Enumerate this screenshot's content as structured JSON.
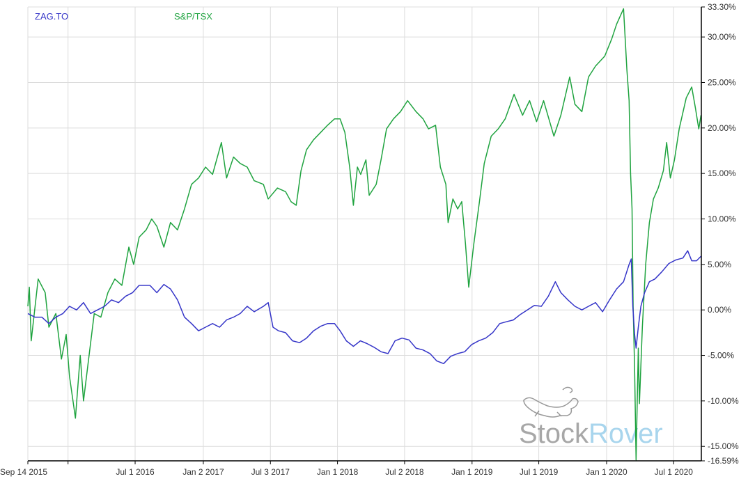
{
  "chart_data": {
    "type": "line",
    "title": "",
    "xlabel": "",
    "ylabel": "",
    "y_unit": "%",
    "ylim": [
      -16.59,
      33.3
    ],
    "xlim": [
      "2015-09-14",
      "2020-09-14"
    ],
    "grid": true,
    "legend_placement": "top-left",
    "y_ticks": [
      "33.30%",
      "30.00%",
      "25.00%",
      "20.00%",
      "15.00%",
      "10.00%",
      "5.00%",
      "0.00%",
      "-5.00%",
      "-10.00%",
      "-15.00%",
      "-16.59%"
    ],
    "y_tick_values": [
      33.3,
      30,
      25,
      20,
      15,
      10,
      5,
      0,
      -5,
      -10,
      -15,
      -16.59
    ],
    "x_ticks": [
      {
        "date": "2015-09-14",
        "label": "Sep 14 2015"
      },
      {
        "date": "2016-01-01",
        "label": ""
      },
      {
        "date": "2016-07-01",
        "label": "Jul 1 2016"
      },
      {
        "date": "2017-01-02",
        "label": "Jan 2 2017"
      },
      {
        "date": "2017-07-03",
        "label": "Jul 3 2017"
      },
      {
        "date": "2018-01-01",
        "label": "Jan 1 2018"
      },
      {
        "date": "2018-07-02",
        "label": "Jul 2 2018"
      },
      {
        "date": "2019-01-01",
        "label": "Jan 1 2019"
      },
      {
        "date": "2019-07-01",
        "label": "Jul 1 2019"
      },
      {
        "date": "2020-01-01",
        "label": "Jan 1 2020"
      },
      {
        "date": "2020-07-01",
        "label": "Jul 1 2020"
      }
    ],
    "series": [
      {
        "name": "ZAG.TO",
        "color": "#3535c8",
        "points": [
          [
            "2015-09-14",
            -0.4
          ],
          [
            "2015-10-03",
            -0.8
          ],
          [
            "2015-10-22",
            -0.8
          ],
          [
            "2015-11-10",
            -1.5
          ],
          [
            "2015-11-29",
            -0.8
          ],
          [
            "2015-12-18",
            -0.4
          ],
          [
            "2016-01-05",
            0.4
          ],
          [
            "2016-01-24",
            0
          ],
          [
            "2016-02-12",
            0.8
          ],
          [
            "2016-03-02",
            -0.4
          ],
          [
            "2016-03-21",
            0
          ],
          [
            "2016-04-09",
            0.4
          ],
          [
            "2016-04-28",
            1.1
          ],
          [
            "2016-05-17",
            0.8
          ],
          [
            "2016-06-05",
            1.5
          ],
          [
            "2016-06-24",
            1.9
          ],
          [
            "2016-07-12",
            2.7
          ],
          [
            "2016-08-10",
            2.7
          ],
          [
            "2016-08-29",
            1.9
          ],
          [
            "2016-09-17",
            2.8
          ],
          [
            "2016-10-05",
            2.3
          ],
          [
            "2016-10-24",
            1.1
          ],
          [
            "2016-11-12",
            -0.8
          ],
          [
            "2016-12-01",
            -1.5
          ],
          [
            "2016-12-20",
            -2.3
          ],
          [
            "2017-01-08",
            -1.9
          ],
          [
            "2017-01-27",
            -1.5
          ],
          [
            "2017-02-15",
            -1.9
          ],
          [
            "2017-03-06",
            -1.1
          ],
          [
            "2017-03-25",
            -0.8
          ],
          [
            "2017-04-12",
            -0.4
          ],
          [
            "2017-05-01",
            0.4
          ],
          [
            "2017-05-20",
            -0.2
          ],
          [
            "2017-06-14",
            0.4
          ],
          [
            "2017-06-27",
            0.8
          ],
          [
            "2017-07-10",
            -1.9
          ],
          [
            "2017-07-25",
            -2.3
          ],
          [
            "2017-08-13",
            -2.5
          ],
          [
            "2017-09-01",
            -3.4
          ],
          [
            "2017-09-20",
            -3.6
          ],
          [
            "2017-10-09",
            -3.1
          ],
          [
            "2017-10-28",
            -2.3
          ],
          [
            "2017-11-16",
            -1.8
          ],
          [
            "2017-12-05",
            -1.5
          ],
          [
            "2017-12-24",
            -1.5
          ],
          [
            "2018-01-08",
            -2.3
          ],
          [
            "2018-01-25",
            -3.4
          ],
          [
            "2018-02-13",
            -4.0
          ],
          [
            "2018-03-04",
            -3.4
          ],
          [
            "2018-03-22",
            -3.7
          ],
          [
            "2018-04-10",
            -4.1
          ],
          [
            "2018-04-29",
            -4.6
          ],
          [
            "2018-05-18",
            -4.8
          ],
          [
            "2018-06-06",
            -3.4
          ],
          [
            "2018-06-25",
            -3.1
          ],
          [
            "2018-07-14",
            -3.3
          ],
          [
            "2018-08-02",
            -4.2
          ],
          [
            "2018-08-21",
            -4.4
          ],
          [
            "2018-09-09",
            -4.8
          ],
          [
            "2018-09-27",
            -5.6
          ],
          [
            "2018-10-16",
            -5.9
          ],
          [
            "2018-11-04",
            -5.1
          ],
          [
            "2018-11-23",
            -4.8
          ],
          [
            "2018-12-12",
            -4.6
          ],
          [
            "2018-12-31",
            -3.8
          ],
          [
            "2019-01-19",
            -3.4
          ],
          [
            "2019-02-07",
            -3.1
          ],
          [
            "2019-02-26",
            -2.5
          ],
          [
            "2019-03-17",
            -1.5
          ],
          [
            "2019-04-04",
            -1.3
          ],
          [
            "2019-04-23",
            -1.1
          ],
          [
            "2019-05-12",
            -0.5
          ],
          [
            "2019-05-31",
            0
          ],
          [
            "2019-06-19",
            0.5
          ],
          [
            "2019-07-08",
            0.4
          ],
          [
            "2019-07-27",
            1.5
          ],
          [
            "2019-08-15",
            3.1
          ],
          [
            "2019-08-30",
            1.9
          ],
          [
            "2019-09-18",
            1.1
          ],
          [
            "2019-10-07",
            0.4
          ],
          [
            "2019-10-26",
            0
          ],
          [
            "2019-11-13",
            0.4
          ],
          [
            "2019-12-02",
            0.8
          ],
          [
            "2019-12-21",
            -0.2
          ],
          [
            "2020-01-09",
            1.1
          ],
          [
            "2020-01-28",
            2.3
          ],
          [
            "2020-02-16",
            3.1
          ],
          [
            "2020-03-02",
            5.0
          ],
          [
            "2020-03-08",
            5.6
          ],
          [
            "2020-03-12",
            0.4
          ],
          [
            "2020-03-17",
            -2.7
          ],
          [
            "2020-03-21",
            -4.2
          ],
          [
            "2020-03-27",
            -1.9
          ],
          [
            "2020-04-03",
            0.4
          ],
          [
            "2020-04-13",
            1.9
          ],
          [
            "2020-04-26",
            3.1
          ],
          [
            "2020-05-11",
            3.4
          ],
          [
            "2020-05-30",
            4.2
          ],
          [
            "2020-06-18",
            5.1
          ],
          [
            "2020-07-07",
            5.5
          ],
          [
            "2020-07-26",
            5.7
          ],
          [
            "2020-08-08",
            6.5
          ],
          [
            "2020-08-19",
            5.4
          ],
          [
            "2020-09-01",
            5.4
          ],
          [
            "2020-09-13",
            5.9
          ]
        ]
      },
      {
        "name": "S&P/TSX",
        "color": "#1fa33f",
        "points": [
          [
            "2015-09-14",
            0.4
          ],
          [
            "2015-09-18",
            2.5
          ],
          [
            "2015-09-23",
            -3.4
          ],
          [
            "2015-10-12",
            3.4
          ],
          [
            "2015-10-31",
            1.9
          ],
          [
            "2015-11-10",
            -1.9
          ],
          [
            "2015-11-29",
            -0.4
          ],
          [
            "2015-12-14",
            -5.4
          ],
          [
            "2015-12-27",
            -2.7
          ],
          [
            "2016-01-05",
            -7.3
          ],
          [
            "2016-01-21",
            -11.9
          ],
          [
            "2016-02-03",
            -5.0
          ],
          [
            "2016-02-12",
            -10.0
          ],
          [
            "2016-02-27",
            -5.0
          ],
          [
            "2016-03-12",
            -0.4
          ],
          [
            "2016-03-30",
            -0.8
          ],
          [
            "2016-04-18",
            1.9
          ],
          [
            "2016-05-07",
            3.4
          ],
          [
            "2016-05-26",
            2.7
          ],
          [
            "2016-06-14",
            6.9
          ],
          [
            "2016-06-27",
            5.0
          ],
          [
            "2016-07-12",
            8.0
          ],
          [
            "2016-07-31",
            8.8
          ],
          [
            "2016-08-15",
            10.0
          ],
          [
            "2016-08-29",
            9.2
          ],
          [
            "2016-09-17",
            6.9
          ],
          [
            "2016-10-05",
            9.6
          ],
          [
            "2016-10-24",
            8.8
          ],
          [
            "2016-11-12",
            11.1
          ],
          [
            "2016-12-01",
            13.8
          ],
          [
            "2016-12-20",
            14.5
          ],
          [
            "2017-01-08",
            15.7
          ],
          [
            "2017-01-27",
            14.9
          ],
          [
            "2017-02-20",
            18.4
          ],
          [
            "2017-03-06",
            14.5
          ],
          [
            "2017-03-25",
            16.8
          ],
          [
            "2017-04-12",
            16.1
          ],
          [
            "2017-05-01",
            15.7
          ],
          [
            "2017-05-20",
            14.2
          ],
          [
            "2017-06-14",
            13.8
          ],
          [
            "2017-06-27",
            12.2
          ],
          [
            "2017-07-22",
            13.4
          ],
          [
            "2017-08-13",
            13.0
          ],
          [
            "2017-08-28",
            11.9
          ],
          [
            "2017-09-11",
            11.5
          ],
          [
            "2017-09-24",
            15.3
          ],
          [
            "2017-10-09",
            17.6
          ],
          [
            "2017-10-28",
            18.7
          ],
          [
            "2017-11-16",
            19.5
          ],
          [
            "2017-12-05",
            20.3
          ],
          [
            "2017-12-24",
            21.0
          ],
          [
            "2018-01-08",
            21.0
          ],
          [
            "2018-01-21",
            19.5
          ],
          [
            "2018-02-03",
            15.7
          ],
          [
            "2018-02-13",
            11.5
          ],
          [
            "2018-02-24",
            15.7
          ],
          [
            "2018-03-05",
            14.9
          ],
          [
            "2018-03-19",
            16.5
          ],
          [
            "2018-03-28",
            12.6
          ],
          [
            "2018-04-16",
            13.8
          ],
          [
            "2018-04-29",
            16.5
          ],
          [
            "2018-05-14",
            19.9
          ],
          [
            "2018-06-02",
            21.0
          ],
          [
            "2018-06-21",
            21.8
          ],
          [
            "2018-07-10",
            23.0
          ],
          [
            "2018-08-02",
            21.8
          ],
          [
            "2018-08-21",
            21.0
          ],
          [
            "2018-09-05",
            19.9
          ],
          [
            "2018-09-24",
            20.3
          ],
          [
            "2018-10-07",
            15.7
          ],
          [
            "2018-10-22",
            13.8
          ],
          [
            "2018-10-28",
            9.6
          ],
          [
            "2018-11-10",
            12.2
          ],
          [
            "2018-11-23",
            11.1
          ],
          [
            "2018-12-04",
            11.9
          ],
          [
            "2018-12-14",
            7.3
          ],
          [
            "2018-12-23",
            2.5
          ],
          [
            "2019-01-06",
            7.3
          ],
          [
            "2019-01-21",
            11.9
          ],
          [
            "2019-02-03",
            16.1
          ],
          [
            "2019-02-22",
            19.1
          ],
          [
            "2019-03-13",
            19.9
          ],
          [
            "2019-04-01",
            21.0
          ],
          [
            "2019-04-25",
            23.7
          ],
          [
            "2019-05-18",
            21.4
          ],
          [
            "2019-06-06",
            23.0
          ],
          [
            "2019-06-25",
            20.7
          ],
          [
            "2019-07-14",
            23.0
          ],
          [
            "2019-08-11",
            19.1
          ],
          [
            "2019-08-30",
            21.4
          ],
          [
            "2019-09-23",
            25.6
          ],
          [
            "2019-10-07",
            22.6
          ],
          [
            "2019-10-26",
            21.8
          ],
          [
            "2019-11-13",
            25.6
          ],
          [
            "2019-12-02",
            26.8
          ],
          [
            "2019-12-27",
            27.9
          ],
          [
            "2020-01-15",
            29.8
          ],
          [
            "2020-01-28",
            31.4
          ],
          [
            "2020-02-16",
            33.1
          ],
          [
            "2020-02-25",
            26.4
          ],
          [
            "2020-03-02",
            23.0
          ],
          [
            "2020-03-06",
            15.0
          ],
          [
            "2020-03-10",
            11.1
          ],
          [
            "2020-03-13",
            0.4
          ],
          [
            "2020-03-17",
            -6.5
          ],
          [
            "2020-03-21",
            -16.5
          ],
          [
            "2020-03-27",
            -4.2
          ],
          [
            "2020-03-30",
            -10.3
          ],
          [
            "2020-04-07",
            -1.9
          ],
          [
            "2020-04-16",
            5.0
          ],
          [
            "2020-04-26",
            9.6
          ],
          [
            "2020-05-07",
            12.2
          ],
          [
            "2020-05-20",
            13.4
          ],
          [
            "2020-06-03",
            15.3
          ],
          [
            "2020-06-12",
            18.4
          ],
          [
            "2020-06-22",
            14.5
          ],
          [
            "2020-07-03",
            16.5
          ],
          [
            "2020-07-16",
            19.9
          ],
          [
            "2020-08-04",
            23.3
          ],
          [
            "2020-08-19",
            24.5
          ],
          [
            "2020-08-29",
            22.2
          ],
          [
            "2020-09-07",
            19.9
          ],
          [
            "2020-09-13",
            21.4
          ]
        ]
      }
    ]
  },
  "watermark": {
    "brand_part1": "Stock",
    "brand_part2": "Rover",
    "colors": {
      "part1": "#8a8a8a",
      "part2": "#8cc8e8"
    }
  }
}
